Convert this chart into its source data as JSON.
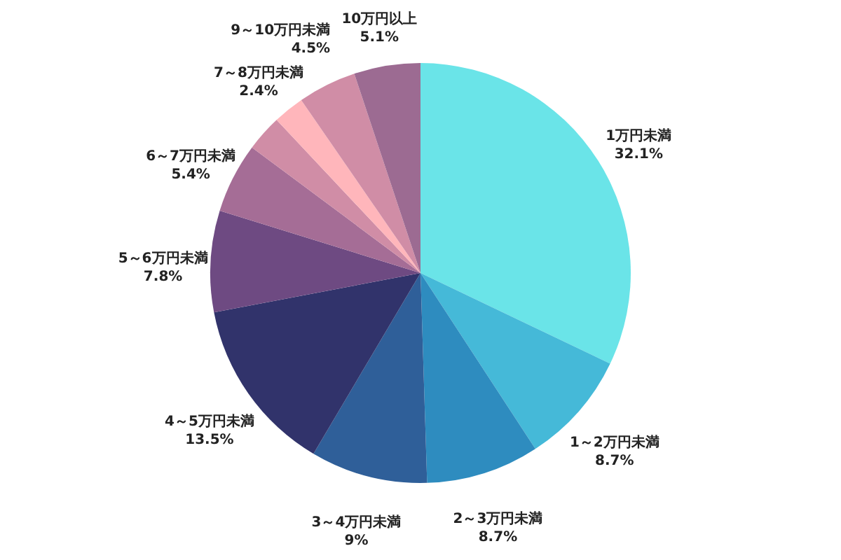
{
  "chart_data": {
    "type": "pie",
    "categories": [
      "1万円未満",
      "1～2万円未満",
      "2～3万円未満",
      "3～4万円未満",
      "4～5万円未満",
      "5～6万円未満",
      "6～7万円未満",
      null,
      "7～8万円未満",
      "9～10万円未満",
      "10万円以上"
    ],
    "values": [
      32.1,
      8.7,
      8.7,
      9,
      13.5,
      7.8,
      5.4,
      2.8,
      2.4,
      4.5,
      5.1
    ],
    "value_labels": [
      "32.1%",
      "8.7%",
      "8.7%",
      "9%",
      "13.5%",
      "7.8%",
      "5.4%",
      null,
      "2.4%",
      "4.5%",
      "5.1%"
    ],
    "colors": [
      "#6ae4e8",
      "#45b9d8",
      "#2e8cbf",
      "#2f5f99",
      "#31336b",
      "#6e4a82",
      "#a56d96",
      "#d08da6",
      "#ffb6bb",
      "#d08da6",
      "#9c6b92"
    ]
  }
}
